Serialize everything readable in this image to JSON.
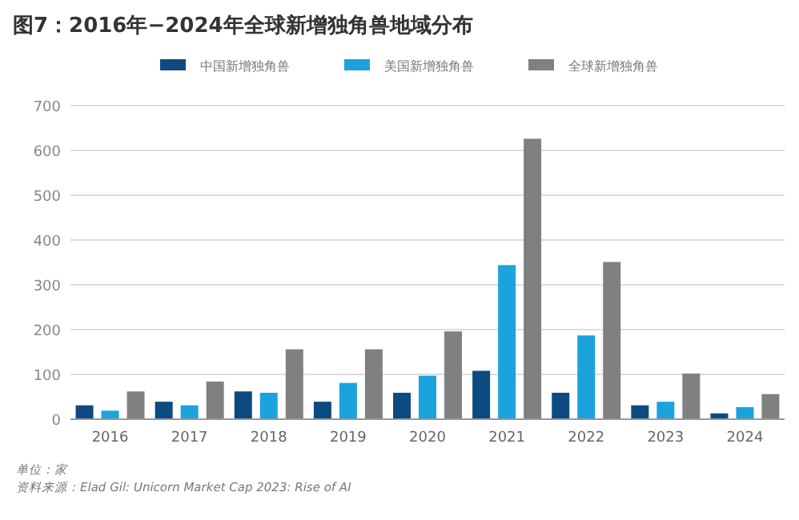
{
  "chart_data": {
    "type": "bar",
    "title": "图7：2016年−2024年全球新增独角兽地域分布",
    "categories": [
      "2016",
      "2017",
      "2018",
      "2019",
      "2020",
      "2021",
      "2022",
      "2023",
      "2024"
    ],
    "series": [
      {
        "name": "中国新增独角兽",
        "color": "#0d4a80",
        "values": [
          31,
          39,
          62,
          39,
          59,
          108,
          59,
          31,
          13
        ]
      },
      {
        "name": "美国新增独角兽",
        "color": "#1aa3dc",
        "values": [
          19,
          31,
          59,
          81,
          97,
          344,
          187,
          39,
          27
        ]
      },
      {
        "name": "全球新增独角兽",
        "color": "#808080",
        "values": [
          62,
          84,
          156,
          156,
          196,
          626,
          351,
          102,
          56
        ]
      }
    ],
    "ylim": [
      0,
      700
    ],
    "yticks": [
      0,
      100,
      200,
      300,
      400,
      500,
      600,
      700
    ],
    "grid": "y",
    "legend": "top",
    "annotations": [
      "单位：家",
      "资料来源：Elad Gil: Unicorn Market Cap 2023: Rise of AI"
    ]
  }
}
